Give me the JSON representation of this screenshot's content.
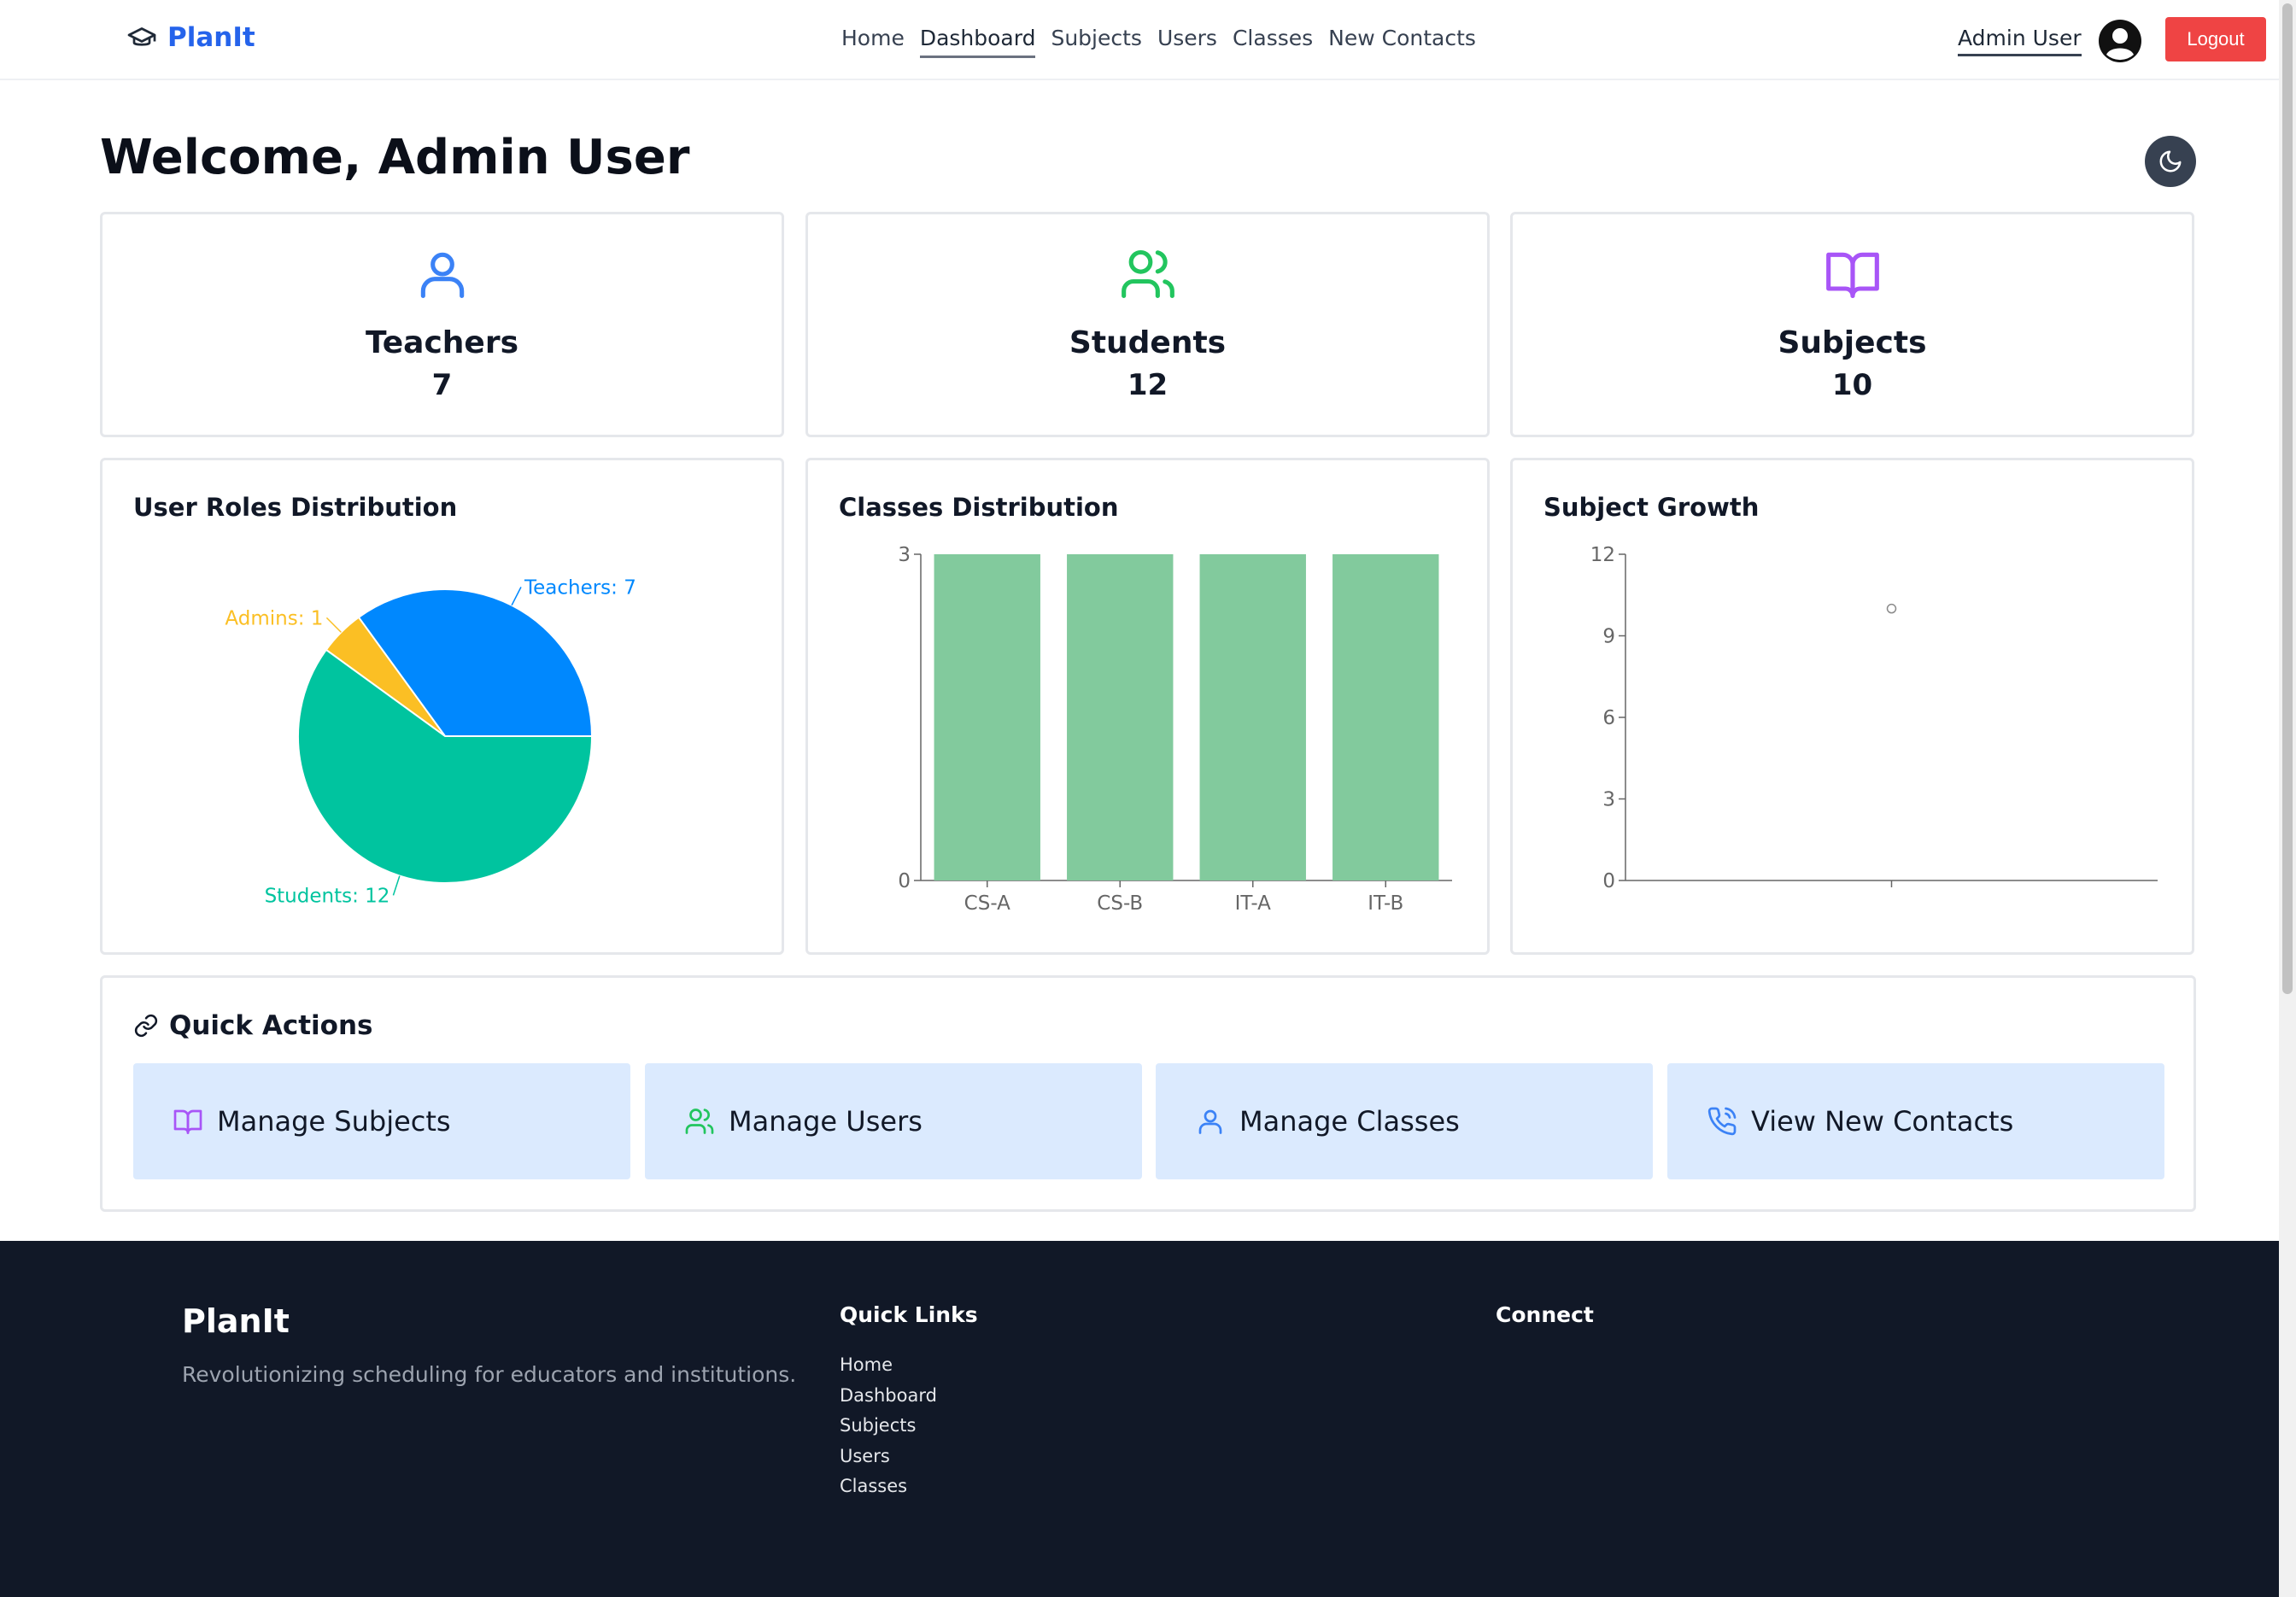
{
  "nav": {
    "brand": "PlanIt",
    "links": [
      "Home",
      "Dashboard",
      "Subjects",
      "Users",
      "Classes",
      "New Contacts"
    ],
    "active": "Dashboard",
    "user": "Admin User",
    "logout": "Logout"
  },
  "welcome": "Welcome, Admin User",
  "stats": [
    {
      "label": "Teachers",
      "value": "7",
      "icon": "user-icon",
      "color": "#3b82f6"
    },
    {
      "label": "Students",
      "value": "12",
      "icon": "users-icon",
      "color": "#22c55e"
    },
    {
      "label": "Subjects",
      "value": "10",
      "icon": "book-open-icon",
      "color": "#a855f7"
    }
  ],
  "charts": {
    "roles_title": "User Roles Distribution",
    "classes_title": "Classes Distribution",
    "growth_title": "Subject Growth"
  },
  "chart_data": [
    {
      "type": "pie",
      "title": "User Roles Distribution",
      "slices": [
        {
          "label": "Teachers: 7",
          "name": "Teachers",
          "value": 7,
          "color": "#0088fe"
        },
        {
          "label": "Admins: 1",
          "name": "Admins",
          "value": 1,
          "color": "#fbbf24"
        },
        {
          "label": "Students: 12",
          "name": "Students",
          "value": 12,
          "color": "#00c49f"
        }
      ]
    },
    {
      "type": "bar",
      "title": "Classes Distribution",
      "categories": [
        "CS-A",
        "CS-B",
        "IT-A",
        "IT-B"
      ],
      "values": [
        3,
        3,
        3,
        3
      ],
      "ylim": [
        0,
        3
      ],
      "yticks": [
        "0",
        "3"
      ],
      "color": "#82ca9d"
    },
    {
      "type": "line",
      "title": "Subject Growth",
      "x": [
        ""
      ],
      "values": [
        10
      ],
      "ylim": [
        0,
        12
      ],
      "yticks": [
        "0",
        "3",
        "6",
        "9",
        "12"
      ],
      "color": "#8884d8"
    }
  ],
  "quick_actions": {
    "title": "Quick Actions",
    "items": [
      {
        "label": "Manage Subjects",
        "icon": "book-open-icon",
        "color": "#a855f7"
      },
      {
        "label": "Manage Users",
        "icon": "users-icon",
        "color": "#22c55e"
      },
      {
        "label": "Manage Classes",
        "icon": "user-icon",
        "color": "#3b82f6"
      },
      {
        "label": "View New Contacts",
        "icon": "phone-icon",
        "color": "#3b82f6"
      }
    ]
  },
  "footer": {
    "brand": "PlanIt",
    "tagline": "Revolutionizing scheduling for educators and institutions.",
    "quick_links_title": "Quick Links",
    "quick_links": [
      "Home",
      "Dashboard",
      "Subjects",
      "Users",
      "Classes"
    ],
    "connect_title": "Connect"
  }
}
